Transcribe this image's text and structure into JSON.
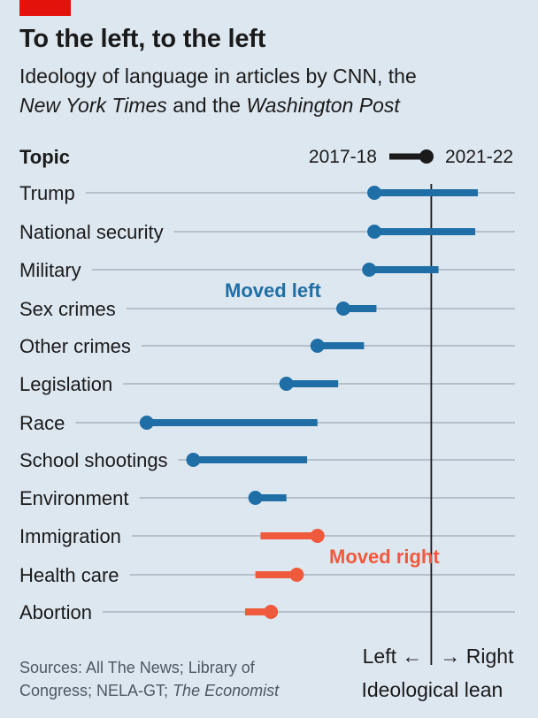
{
  "header": {
    "title": "To the left, to the left",
    "subtitle_part1": "Ideology of language in articles by CNN, the",
    "subtitle_italic1": "New York Times",
    "subtitle_part2": " and the ",
    "subtitle_italic2": "Washington Post"
  },
  "source": {
    "part1": "Sources: All The News; Library of Congress; NELA-GT; ",
    "italic": "The Economist"
  },
  "colors": {
    "moved_left": "#1f6fa6",
    "moved_right": "#ef5a3c",
    "axis": "#1a1a1a",
    "gridline": "#a9b3bd",
    "background": "#dde7f0",
    "brand": "#e3120b"
  },
  "chart_data": {
    "type": "dumbbell",
    "topic_header": "Topic",
    "legend": {
      "start_label": "2017-18",
      "end_label": "2021-22"
    },
    "zero_label_left": "Left ←",
    "zero_label_right": "→ Right",
    "xlabel": "Ideological lean",
    "xlim": [
      -0.56,
      0.09
    ],
    "zero": 0,
    "annotations": {
      "moved_left": "Moved left",
      "moved_right": "Moved right"
    },
    "rows": [
      {
        "topic": "Trump",
        "start": 0.09,
        "end": -0.11,
        "direction": "left"
      },
      {
        "topic": "National security",
        "start": 0.085,
        "end": -0.11,
        "direction": "left"
      },
      {
        "topic": "Military",
        "start": 0.014,
        "end": -0.12,
        "direction": "left"
      },
      {
        "topic": "Sex crimes",
        "start": -0.106,
        "end": -0.17,
        "direction": "left"
      },
      {
        "topic": "Other crimes",
        "start": -0.13,
        "end": -0.22,
        "direction": "left"
      },
      {
        "topic": "Legislation",
        "start": -0.18,
        "end": -0.28,
        "direction": "left"
      },
      {
        "topic": "Race",
        "start": -0.22,
        "end": -0.55,
        "direction": "left"
      },
      {
        "topic": "School shootings",
        "start": -0.24,
        "end": -0.46,
        "direction": "left"
      },
      {
        "topic": "Environment",
        "start": -0.28,
        "end": -0.34,
        "direction": "left"
      },
      {
        "topic": "Immigration",
        "start": -0.33,
        "end": -0.22,
        "direction": "right"
      },
      {
        "topic": "Health care",
        "start": -0.34,
        "end": -0.26,
        "direction": "right"
      },
      {
        "topic": "Abortion",
        "start": -0.36,
        "end": -0.31,
        "direction": "right"
      }
    ]
  }
}
